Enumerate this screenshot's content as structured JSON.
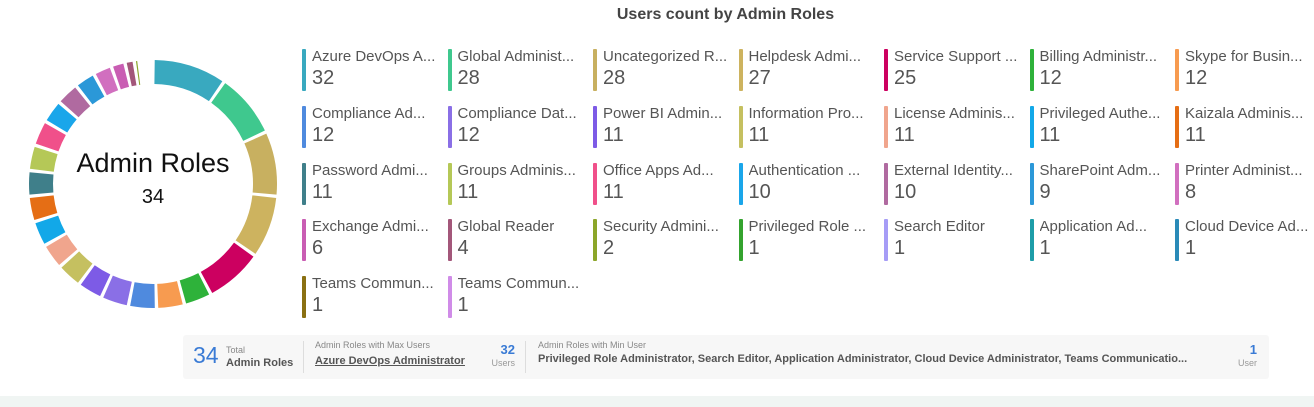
{
  "header": {
    "title": "Users count by Admin Roles"
  },
  "donut_center": {
    "title": "Admin Roles",
    "count": "34"
  },
  "summary": {
    "total_value": "34",
    "total_label_top": "Total",
    "total_label_bottom": "Admin Roles",
    "max_label": "Admin Roles with Max Users",
    "max_role": "Azure DevOps Administrator",
    "max_count": "32",
    "max_unit": "Users",
    "min_label": "Admin Roles with Min User",
    "min_roles": "Privileged Role Administrator, Search Editor, Application Administrator, Cloud Device Administrator, Teams Communicatio...",
    "min_count": "1",
    "min_unit": "User"
  },
  "legend": [
    {
      "name": "Azure DevOps A...",
      "value": "32"
    },
    {
      "name": "Global Administ...",
      "value": "28"
    },
    {
      "name": "Uncategorized R...",
      "value": "28"
    },
    {
      "name": "Helpdesk Admi...",
      "value": "27"
    },
    {
      "name": "Service Support ...",
      "value": "25"
    },
    {
      "name": "Billing Administr...",
      "value": "12"
    },
    {
      "name": "Skype for Busin...",
      "value": "12"
    },
    {
      "name": "Compliance Ad...",
      "value": "12"
    },
    {
      "name": "Compliance Dat...",
      "value": "12"
    },
    {
      "name": "Power BI Admin...",
      "value": "11"
    },
    {
      "name": "Information Pro...",
      "value": "11"
    },
    {
      "name": "License Adminis...",
      "value": "11"
    },
    {
      "name": "Privileged Authe...",
      "value": "11"
    },
    {
      "name": "Kaizala Adminis...",
      "value": "11"
    },
    {
      "name": "Password Admi...",
      "value": "11"
    },
    {
      "name": "Groups Adminis...",
      "value": "11"
    },
    {
      "name": "Office Apps Ad...",
      "value": "11"
    },
    {
      "name": "Authentication ...",
      "value": "10"
    },
    {
      "name": "External Identity...",
      "value": "10"
    },
    {
      "name": "SharePoint Adm...",
      "value": "9"
    },
    {
      "name": "Printer Administ...",
      "value": "8"
    },
    {
      "name": "Exchange Admi...",
      "value": "6"
    },
    {
      "name": "Global Reader",
      "value": "4"
    },
    {
      "name": "Security Admini...",
      "value": "2"
    },
    {
      "name": "Privileged Role ...",
      "value": "1"
    },
    {
      "name": "Search Editor",
      "value": "1"
    },
    {
      "name": "Application Ad...",
      "value": "1"
    },
    {
      "name": "Cloud Device Ad...",
      "value": "1"
    },
    {
      "name": "Teams Commun...",
      "value": "1"
    },
    {
      "name": "Teams Commun...",
      "value": "1"
    }
  ],
  "chart_data": {
    "type": "pie",
    "title": "Users count by Admin Roles",
    "center_label": "Admin Roles",
    "center_value": 34,
    "slices": [
      {
        "label": "Azure DevOps A...",
        "value": 32,
        "color": "#39a9bf"
      },
      {
        "label": "Global Administ...",
        "value": 28,
        "color": "#3fc88e"
      },
      {
        "label": "Uncategorized R...",
        "value": 28,
        "color": "#c8b060"
      },
      {
        "label": "Helpdesk Admi...",
        "value": 27,
        "color": "#cdb35f"
      },
      {
        "label": "Service Support ...",
        "value": 25,
        "color": "#cc0060"
      },
      {
        "label": "Billing Administr...",
        "value": 12,
        "color": "#2eb23a"
      },
      {
        "label": "Skype for Busin...",
        "value": 12,
        "color": "#f79b50"
      },
      {
        "label": "Compliance Ad...",
        "value": 12,
        "color": "#4f8ade"
      },
      {
        "label": "Compliance Dat...",
        "value": 12,
        "color": "#8a6fe6"
      },
      {
        "label": "Power BI Admin...",
        "value": 11,
        "color": "#7d5be6"
      },
      {
        "label": "Information Pro...",
        "value": 11,
        "color": "#c5c060"
      },
      {
        "label": "License Adminis...",
        "value": 11,
        "color": "#f0a58d"
      },
      {
        "label": "Privileged Authe...",
        "value": 11,
        "color": "#12a8e8"
      },
      {
        "label": "Kaizala Adminis...",
        "value": 11,
        "color": "#e56e15"
      },
      {
        "label": "Password Admi...",
        "value": 11,
        "color": "#3f7f8a"
      },
      {
        "label": "Groups Adminis...",
        "value": 11,
        "color": "#b5c857"
      },
      {
        "label": "Office Apps Ad...",
        "value": 11,
        "color": "#f0508a"
      },
      {
        "label": "Authentication ...",
        "value": 10,
        "color": "#1aa6ea"
      },
      {
        "label": "External Identity...",
        "value": 10,
        "color": "#b06aa0"
      },
      {
        "label": "SharePoint Adm...",
        "value": 9,
        "color": "#2b98d8"
      },
      {
        "label": "Printer Administ...",
        "value": 8,
        "color": "#d16fbf"
      },
      {
        "label": "Exchange Admi...",
        "value": 6,
        "color": "#c95db3"
      },
      {
        "label": "Global Reader",
        "value": 4,
        "color": "#a3577a"
      },
      {
        "label": "Security Admini...",
        "value": 2,
        "color": "#8ca62a"
      },
      {
        "label": "Privileged Role ...",
        "value": 1,
        "color": "#34a32e"
      },
      {
        "label": "Search Editor",
        "value": 1,
        "color": "#a69cf6"
      },
      {
        "label": "Application Ad...",
        "value": 1,
        "color": "#1d9da8"
      },
      {
        "label": "Cloud Device Ad...",
        "value": 1,
        "color": "#2a8ab8"
      },
      {
        "label": "Teams Commun...",
        "value": 1,
        "color": "#8a7012"
      },
      {
        "label": "Teams Commun...",
        "value": 1,
        "color": "#d08ce8"
      }
    ]
  }
}
